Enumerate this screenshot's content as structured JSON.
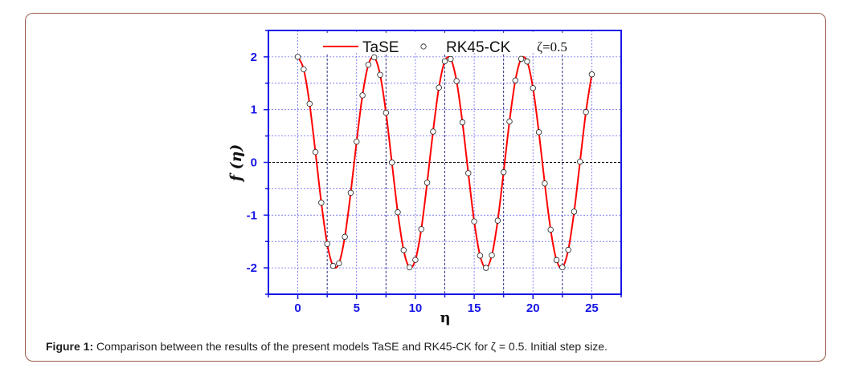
{
  "caption": {
    "label": "Figure 1:",
    "text": " Comparison between the results of the present models TaSE and RK45-CK for ζ = 0.5. Initial step size."
  },
  "chart_data": {
    "type": "line",
    "title": "",
    "xlabel": "η",
    "ylabel": "f (η)",
    "xlim": [
      -2.5,
      27.5
    ],
    "ylim": [
      -2.5,
      2.5
    ],
    "xticks": [
      "0",
      "5",
      "10",
      "15",
      "20",
      "25"
    ],
    "yticks": [
      "-2",
      "-1",
      "0",
      "1",
      "2"
    ],
    "grid": true,
    "legend_position": "top",
    "annotation": "ζ=0.5",
    "colors": {
      "axis": "#1515e6",
      "grid": "#6b6bf0",
      "line": "#ff0000",
      "marker": "#ffffff"
    },
    "x": [
      0,
      0.5,
      1,
      1.5,
      2,
      2.5,
      3,
      3.5,
      4,
      4.5,
      5,
      5.5,
      6,
      6.5,
      7,
      7.5,
      8,
      8.5,
      9,
      9.5,
      10,
      10.5,
      11,
      11.5,
      12,
      12.5,
      13,
      13.5,
      14,
      14.5,
      15,
      15.5,
      16,
      16.5,
      17,
      17.5,
      18,
      18.5,
      19,
      19.5,
      20,
      20.5,
      21,
      21.5,
      22,
      22.5,
      23,
      23.5,
      24,
      24.5,
      25
    ],
    "series": [
      {
        "name": "TaSE",
        "style": "line",
        "values": [
          2.0,
          1.764,
          1.111,
          0.195,
          -0.766,
          -1.546,
          -1.962,
          -1.914,
          -1.411,
          -0.576,
          0.392,
          1.27,
          1.85,
          1.99,
          1.66,
          0.94,
          -0.004,
          -0.946,
          -1.664,
          -1.99,
          -1.848,
          -1.266,
          -0.386,
          0.584,
          1.418,
          1.916,
          1.96,
          1.541,
          0.758,
          -0.204,
          -1.12,
          -1.768,
          -2.0,
          -1.762,
          -1.104,
          -0.186,
          0.774,
          1.552,
          1.963,
          1.911,
          1.408,
          0.572,
          -0.4,
          -1.276,
          -1.852,
          -1.99,
          -1.658,
          -0.934,
          0.012,
          0.954,
          1.668
        ]
      },
      {
        "name": "RK45-CK",
        "style": "markers",
        "values": [
          2.0,
          1.764,
          1.111,
          0.195,
          -0.766,
          -1.546,
          -1.962,
          -1.914,
          -1.411,
          -0.576,
          0.392,
          1.27,
          1.85,
          1.99,
          1.66,
          0.94,
          -0.004,
          -0.946,
          -1.664,
          -1.99,
          -1.848,
          -1.266,
          -0.386,
          0.584,
          1.418,
          1.916,
          1.96,
          1.541,
          0.758,
          -0.204,
          -1.12,
          -1.768,
          -2.0,
          -1.762,
          -1.104,
          -0.186,
          0.774,
          1.552,
          1.963,
          1.911,
          1.408,
          0.572,
          -0.4,
          -1.276,
          -1.852,
          -1.99,
          -1.658,
          -0.934,
          0.012,
          0.954,
          1.668
        ]
      }
    ]
  }
}
